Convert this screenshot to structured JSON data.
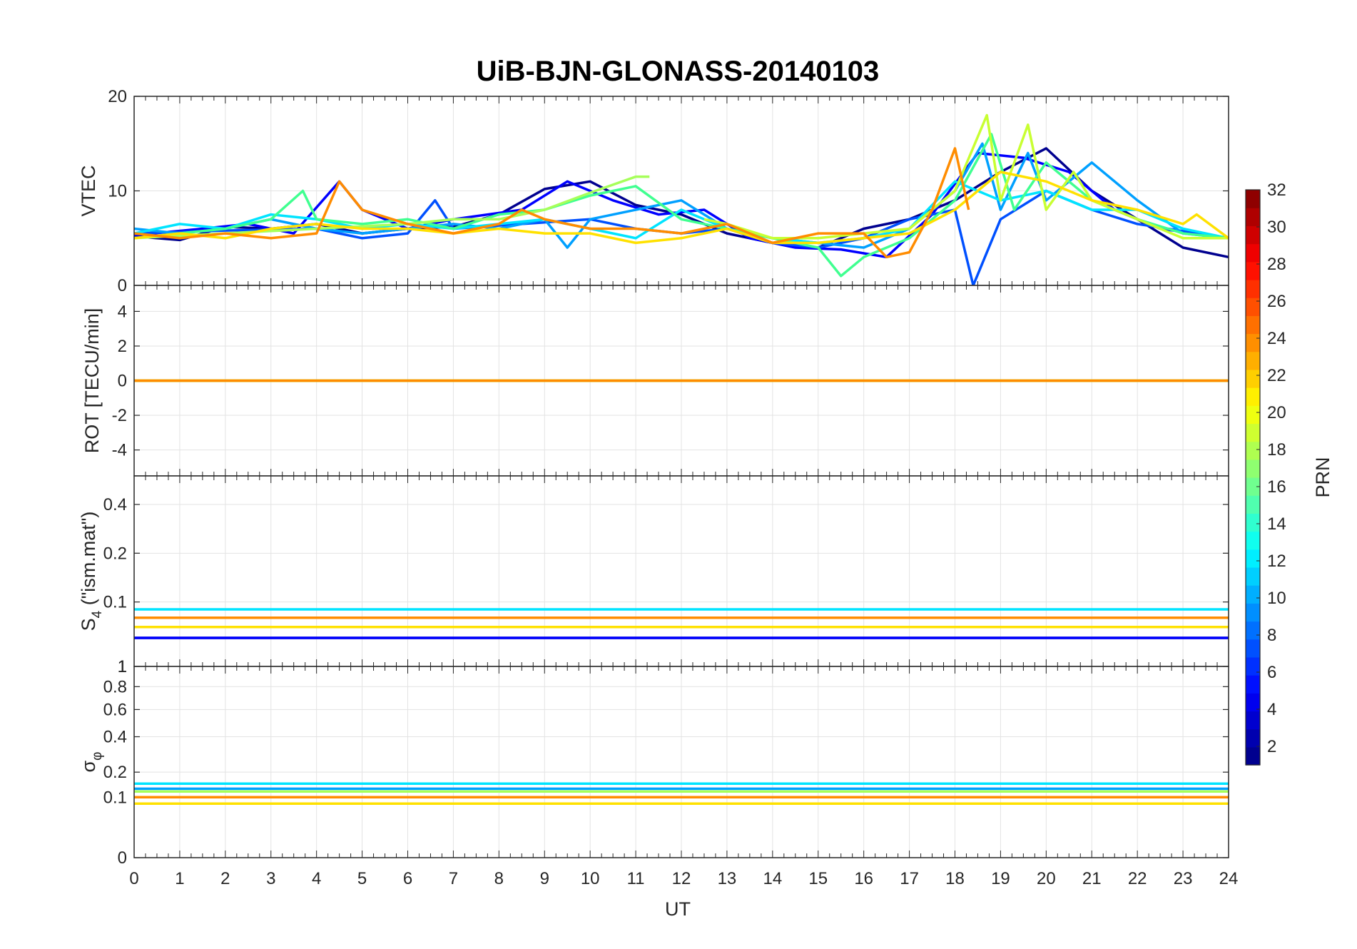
{
  "chart_data": {
    "type": "line",
    "title": "UiB-BJN-GLONASS-20140103",
    "xlabel": "UT",
    "xlim": [
      0,
      24
    ],
    "xticks": [
      "0",
      "1",
      "2",
      "3",
      "4",
      "5",
      "6",
      "7",
      "8",
      "9",
      "10",
      "11",
      "12",
      "13",
      "14",
      "15",
      "16",
      "17",
      "18",
      "19",
      "20",
      "21",
      "22",
      "23",
      "24"
    ],
    "panels": [
      {
        "ylabel": "VTEC",
        "ylim": [
          0,
          20
        ],
        "yticks": [
          "0",
          "10",
          "20"
        ]
      },
      {
        "ylabel": "ROT [TECU/min]",
        "ylim": [
          -5.5,
          5.5
        ],
        "yticks": [
          "-4",
          "-2",
          "0",
          "2",
          "4"
        ]
      },
      {
        "ylabel_main": "S",
        "ylabel_sub": "4",
        "ylabel_rest": " (\"ism.mat\")",
        "ylim": [
          0.04,
          0.6
        ],
        "yticks": [
          "0.1",
          "0.2",
          "0.4"
        ],
        "extra_tick": "1"
      },
      {
        "ylabel_main": "σ",
        "ylabel_sub": "φ",
        "ylim": [
          0,
          1
        ],
        "yticks": [
          "0",
          "0.1",
          "0.2",
          "0.4",
          "0.6",
          "0.8",
          "1"
        ]
      }
    ],
    "colorbar": {
      "label": "PRN",
      "range": [
        1,
        32
      ],
      "ticks": [
        "2",
        "4",
        "6",
        "8",
        "10",
        "12",
        "14",
        "16",
        "18",
        "20",
        "22",
        "24",
        "26",
        "28",
        "30",
        "32"
      ]
    },
    "series": [
      {
        "name": "PRN 2",
        "prn": 2,
        "color": "#00008f",
        "vtec": [
          [
            0,
            5.2
          ],
          [
            1,
            4.8
          ],
          [
            2,
            6.2
          ],
          [
            3,
            6
          ],
          [
            4,
            6.5
          ],
          [
            5,
            5.5
          ],
          [
            6,
            6
          ],
          [
            7,
            6.2
          ],
          [
            8,
            7.5
          ],
          [
            9,
            10.2
          ],
          [
            10,
            11
          ],
          [
            11,
            8.5
          ],
          [
            12,
            7.5
          ],
          [
            13,
            5.5
          ],
          [
            14,
            4.5
          ],
          [
            15,
            4
          ],
          [
            16,
            6
          ],
          [
            17,
            7
          ],
          [
            18,
            9
          ],
          [
            19,
            12
          ],
          [
            20,
            14.5
          ],
          [
            21,
            10
          ],
          [
            22,
            7
          ],
          [
            23,
            4
          ],
          [
            24,
            3
          ]
        ],
        "rot": [
          [
            0,
            0
          ],
          [
            24,
            0
          ]
        ],
        "s4": [
          [
            0,
            0.06
          ],
          [
            24,
            0.06
          ]
        ],
        "sigma": [
          [
            0,
            0.1
          ],
          [
            24,
            0.1
          ]
        ]
      },
      {
        "name": "PRN 5",
        "prn": 5,
        "color": "#0000ff",
        "vtec": [
          [
            0,
            5.3
          ],
          [
            1.5,
            6
          ],
          [
            2.5,
            6.5
          ],
          [
            3.5,
            5.5
          ],
          [
            4.5,
            11
          ],
          [
            5,
            8
          ],
          [
            6,
            6
          ],
          [
            7,
            7
          ],
          [
            8.5,
            8
          ],
          [
            9.5,
            11
          ],
          [
            10.5,
            9
          ],
          [
            11.5,
            7.5
          ],
          [
            12.5,
            8
          ],
          [
            13.5,
            5
          ],
          [
            14.5,
            4
          ],
          [
            15.5,
            3.8
          ],
          [
            16.5,
            3
          ],
          [
            17.5,
            7.5
          ],
          [
            18.5,
            14
          ],
          [
            19.5,
            13.5
          ],
          [
            20.5,
            12
          ],
          [
            21.5,
            8
          ],
          [
            22.5,
            6
          ],
          [
            24,
            5
          ]
        ],
        "rot": [
          [
            0,
            0
          ],
          [
            24,
            0
          ]
        ],
        "s4": [
          [
            0,
            0.06
          ],
          [
            24,
            0.06
          ]
        ],
        "sigma": [
          [
            0,
            0.12
          ],
          [
            24,
            0.12
          ]
        ]
      },
      {
        "name": "PRN 7",
        "prn": 7,
        "color": "#0050ff",
        "vtec": [
          [
            0,
            5.5
          ],
          [
            2,
            5.8
          ],
          [
            4,
            6
          ],
          [
            5,
            5
          ],
          [
            6,
            5.5
          ],
          [
            6.6,
            9
          ],
          [
            7,
            6
          ],
          [
            8.5,
            6.5
          ],
          [
            10,
            7
          ],
          [
            11,
            6
          ],
          [
            12,
            5.5
          ],
          [
            13,
            6
          ],
          [
            14,
            4.5
          ],
          [
            15,
            4
          ],
          [
            16,
            5
          ],
          [
            17,
            7
          ],
          [
            18,
            8
          ],
          [
            18.4,
            0
          ],
          [
            19,
            7
          ],
          [
            20,
            10
          ],
          [
            21,
            8
          ],
          [
            22,
            6.5
          ],
          [
            24,
            5
          ]
        ],
        "rot": [
          [
            0,
            0
          ],
          [
            24,
            0
          ]
        ],
        "s4": [
          [
            0,
            0.07
          ],
          [
            24,
            0.07
          ]
        ],
        "sigma": [
          [
            0,
            0.1
          ],
          [
            24,
            0.1
          ]
        ]
      },
      {
        "name": "PRN 10",
        "prn": 10,
        "color": "#00a0ff",
        "vtec": [
          [
            0,
            6
          ],
          [
            1,
            5.5
          ],
          [
            2,
            6
          ],
          [
            3,
            7
          ],
          [
            4,
            6
          ],
          [
            5,
            5.5
          ],
          [
            6,
            6
          ],
          [
            7,
            6.5
          ],
          [
            8,
            6
          ],
          [
            9,
            7
          ],
          [
            9.5,
            4
          ],
          [
            10,
            7
          ],
          [
            11,
            8
          ],
          [
            12,
            9
          ],
          [
            13,
            6
          ],
          [
            14,
            5
          ],
          [
            15,
            4.5
          ],
          [
            16,
            4
          ],
          [
            17,
            6
          ],
          [
            18,
            10
          ],
          [
            18.6,
            15
          ],
          [
            19,
            8
          ],
          [
            19.6,
            14
          ],
          [
            20,
            9
          ],
          [
            21,
            13
          ],
          [
            22,
            9
          ],
          [
            23,
            5.5
          ],
          [
            24,
            5
          ]
        ],
        "rot": [
          [
            0,
            0
          ],
          [
            24,
            0
          ]
        ],
        "s4": [
          [
            0,
            0.08
          ],
          [
            24,
            0.08
          ]
        ],
        "sigma": [
          [
            0,
            0.13
          ],
          [
            24,
            0.13
          ]
        ]
      },
      {
        "name": "PRN 12",
        "prn": 12,
        "color": "#00e4ff",
        "vtec": [
          [
            0,
            5.5
          ],
          [
            1,
            6.5
          ],
          [
            2,
            6
          ],
          [
            3,
            7.5
          ],
          [
            4,
            7
          ],
          [
            5,
            6
          ],
          [
            6,
            6.5
          ],
          [
            7,
            6
          ],
          [
            8,
            6.5
          ],
          [
            9,
            7
          ],
          [
            10,
            6
          ],
          [
            11,
            5
          ],
          [
            12,
            8
          ],
          [
            13,
            6
          ],
          [
            14,
            5
          ],
          [
            15,
            4.5
          ],
          [
            16,
            5
          ],
          [
            17,
            6
          ],
          [
            18,
            11
          ],
          [
            19,
            9
          ],
          [
            20,
            10
          ],
          [
            21,
            8
          ],
          [
            22,
            8
          ],
          [
            23,
            6
          ],
          [
            24,
            5
          ]
        ],
        "rot": [
          [
            0,
            0
          ],
          [
            24,
            0
          ]
        ],
        "s4": [
          [
            0,
            0.09
          ],
          [
            24,
            0.09
          ]
        ],
        "sigma": [
          [
            0,
            0.15
          ],
          [
            24,
            0.15
          ]
        ]
      },
      {
        "name": "PRN 15",
        "prn": 15,
        "color": "#40ff90",
        "vtec": [
          [
            0,
            5
          ],
          [
            1,
            5.5
          ],
          [
            2,
            6
          ],
          [
            3,
            7
          ],
          [
            3.7,
            10
          ],
          [
            4,
            7
          ],
          [
            5,
            6.5
          ],
          [
            6,
            7
          ],
          [
            7,
            6
          ],
          [
            8,
            7.5
          ],
          [
            9,
            8
          ],
          [
            10,
            9.5
          ],
          [
            11,
            10.5
          ],
          [
            12,
            7
          ],
          [
            13,
            6
          ],
          [
            14,
            5
          ],
          [
            15,
            4
          ],
          [
            15.5,
            1
          ],
          [
            16,
            3
          ],
          [
            17,
            5
          ],
          [
            18,
            9
          ],
          [
            18.8,
            16
          ],
          [
            19.3,
            8
          ],
          [
            20,
            13
          ],
          [
            21,
            9
          ],
          [
            22,
            7
          ],
          [
            23,
            5.5
          ],
          [
            24,
            5
          ]
        ],
        "rot": [
          [
            0,
            0
          ],
          [
            24,
            0
          ]
        ],
        "s4": [
          [
            0,
            0.07
          ],
          [
            24,
            0.07
          ]
        ],
        "sigma": [
          [
            0,
            0.1
          ],
          [
            24,
            0.1
          ]
        ]
      },
      {
        "name": "PRN 17",
        "prn": 17,
        "color": "#a6ff5a",
        "vtec": [
          [
            0,
            5
          ],
          [
            2,
            5.5
          ],
          [
            4,
            6
          ],
          [
            6,
            6.5
          ],
          [
            7,
            7
          ],
          [
            8,
            7
          ],
          [
            9,
            8
          ],
          [
            10,
            9.8
          ],
          [
            11,
            11.5
          ],
          [
            11.3,
            11.5
          ]
        ],
        "rot": [
          [
            0,
            0
          ],
          [
            24,
            0
          ]
        ],
        "s4": [
          [
            0,
            0.08
          ],
          [
            24,
            0.08
          ]
        ],
        "sigma": [
          [
            0,
            0.12
          ],
          [
            24,
            0.12
          ]
        ]
      },
      {
        "name": "PRN 19",
        "prn": 19,
        "color": "#c8ff32",
        "vtec": [
          [
            12.5,
            7
          ],
          [
            13,
            6.5
          ],
          [
            14,
            5
          ],
          [
            15,
            5
          ],
          [
            16,
            5.5
          ],
          [
            17,
            6
          ],
          [
            18,
            10
          ],
          [
            18.7,
            18
          ],
          [
            19,
            9
          ],
          [
            19.6,
            17
          ],
          [
            20,
            8
          ],
          [
            20.6,
            12
          ],
          [
            21,
            9
          ],
          [
            22,
            7
          ],
          [
            23,
            5
          ],
          [
            24,
            5
          ]
        ],
        "rot": [
          [
            0,
            0
          ],
          [
            24,
            0
          ]
        ],
        "s4": [
          [
            0,
            0.07
          ],
          [
            24,
            0.07
          ]
        ],
        "sigma": [
          [
            0,
            0.1
          ],
          [
            24,
            0.1
          ]
        ]
      },
      {
        "name": "PRN 21",
        "prn": 21,
        "color": "#ffe100",
        "vtec": [
          [
            0,
            5
          ],
          [
            1,
            5.5
          ],
          [
            2,
            5
          ],
          [
            3,
            6
          ],
          [
            4,
            6.5
          ],
          [
            5,
            6
          ],
          [
            6,
            6
          ],
          [
            7,
            5.5
          ],
          [
            8,
            6
          ],
          [
            9,
            5.5
          ],
          [
            10,
            5.5
          ],
          [
            11,
            4.5
          ],
          [
            12,
            5
          ],
          [
            13,
            6
          ],
          [
            14,
            4.5
          ],
          [
            15,
            4.5
          ],
          [
            16,
            5
          ],
          [
            17,
            5.5
          ],
          [
            18,
            8
          ],
          [
            19,
            12
          ],
          [
            20,
            11
          ],
          [
            21,
            9
          ],
          [
            22,
            8
          ],
          [
            23,
            6.5
          ],
          [
            23.3,
            7.5
          ],
          [
            24,
            5
          ]
        ],
        "rot": [
          [
            0,
            0
          ],
          [
            24,
            0
          ]
        ],
        "s4": [
          [
            0,
            0.07
          ],
          [
            24,
            0.07
          ]
        ],
        "sigma": [
          [
            0,
            0.08
          ],
          [
            24,
            0.08
          ]
        ]
      },
      {
        "name": "PRN 23",
        "prn": 23,
        "color": "#ff8c00",
        "vtec": [
          [
            0,
            5.5
          ],
          [
            1,
            5
          ],
          [
            2,
            5.5
          ],
          [
            3,
            5
          ],
          [
            4,
            5.5
          ],
          [
            4.5,
            11
          ],
          [
            5,
            8
          ],
          [
            6,
            6.5
          ],
          [
            7,
            5.5
          ],
          [
            8,
            6.5
          ],
          [
            8.5,
            8
          ],
          [
            9,
            7
          ],
          [
            10,
            6
          ],
          [
            11,
            6
          ],
          [
            12,
            5.5
          ],
          [
            13,
            6.5
          ],
          [
            14,
            4.5
          ],
          [
            15,
            5.5
          ],
          [
            16,
            5.5
          ],
          [
            16.5,
            3
          ],
          [
            17,
            3.5
          ],
          [
            17.5,
            8
          ],
          [
            18,
            14.5
          ],
          [
            18.3,
            8
          ]
        ],
        "rot": [
          [
            0,
            0
          ],
          [
            24,
            0
          ]
        ],
        "s4": [
          [
            0,
            0.08
          ],
          [
            24,
            0.08
          ]
        ],
        "sigma": [
          [
            0,
            0.1
          ],
          [
            24,
            0.1
          ]
        ]
      }
    ]
  }
}
